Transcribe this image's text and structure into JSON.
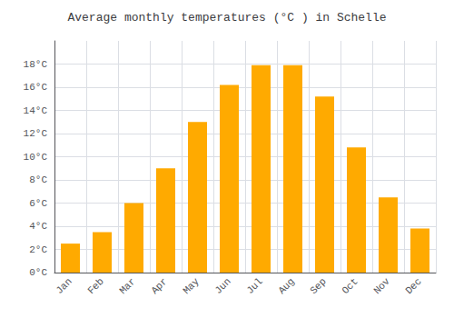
{
  "chart_data": {
    "type": "bar",
    "title": "Average monthly temperatures (°C ) in Schelle",
    "categories": [
      "Jan",
      "Feb",
      "Mar",
      "Apr",
      "May",
      "Jun",
      "Jul",
      "Aug",
      "Sep",
      "Oct",
      "Nov",
      "Dec"
    ],
    "values": [
      2.5,
      3.5,
      6.0,
      9.0,
      13.0,
      16.2,
      17.9,
      17.9,
      15.2,
      10.8,
      6.5,
      3.8
    ],
    "color": "#FFAA00",
    "ylim": [
      0,
      20
    ],
    "yticks": [
      {
        "value": 0,
        "label": "0°C"
      },
      {
        "value": 2,
        "label": "2°C"
      },
      {
        "value": 4,
        "label": "4°C"
      },
      {
        "value": 6,
        "label": "6°C"
      },
      {
        "value": 8,
        "label": "8°C"
      },
      {
        "value": 10,
        "label": "10°C"
      },
      {
        "value": 12,
        "label": "12°C"
      },
      {
        "value": 14,
        "label": "14°C"
      },
      {
        "value": 16,
        "label": "16°C"
      },
      {
        "value": 18,
        "label": "18°C"
      }
    ],
    "grid": true
  }
}
